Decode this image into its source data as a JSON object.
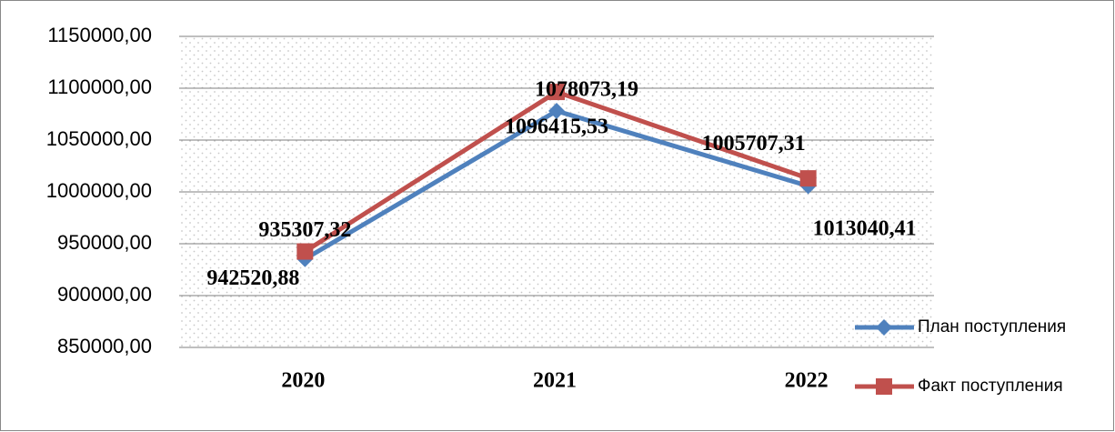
{
  "chart_data": {
    "type": "line",
    "categories": [
      "2020",
      "2021",
      "2022"
    ],
    "series": [
      {
        "name": "План поступления",
        "color": "#4f81bd",
        "marker": "diamond",
        "values": [
          935307.32,
          1078073.19,
          1005707.31
        ],
        "value_labels": [
          "935307,32",
          "1078073,19",
          "1005707,31"
        ]
      },
      {
        "name": "Факт поступления",
        "color": "#c0504d",
        "marker": "square",
        "values": [
          942520.88,
          1096415.53,
          1013040.41
        ],
        "value_labels": [
          "942520,88",
          "1096415,53",
          "1013040,41"
        ]
      }
    ],
    "ylim": [
      850000,
      1150000
    ],
    "yticks": [
      {
        "value": 850000,
        "label": "850000,00"
      },
      {
        "value": 900000,
        "label": "900000,00"
      },
      {
        "value": 950000,
        "label": "950000,00"
      },
      {
        "value": 1000000,
        "label": "1000000,00"
      },
      {
        "value": 1050000,
        "label": "1050000,00"
      },
      {
        "value": 1100000,
        "label": "1100000,00"
      },
      {
        "value": 1150000,
        "label": "1150000,00"
      }
    ],
    "grid": true,
    "legend": "right"
  }
}
